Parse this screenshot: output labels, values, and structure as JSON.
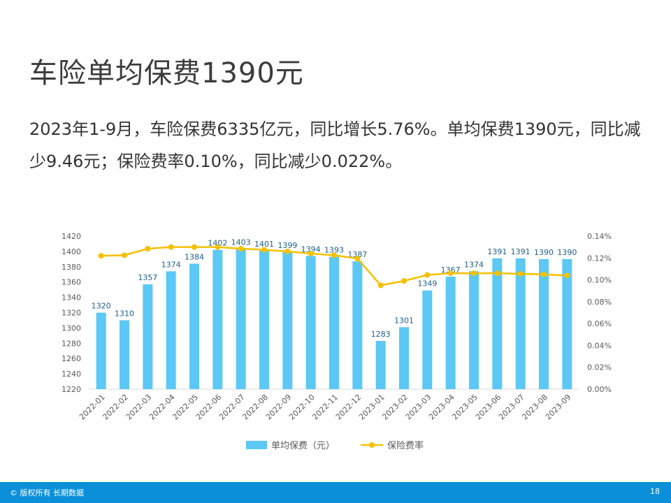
{
  "slide": {
    "title": "车险单均保费1390元",
    "description": "2023年1-9月，车险保费6335亿元，同比增长5.76%。单均保费1390元，同比减少9.46元；保险费率0.10%，同比减少0.022%。"
  },
  "footer": {
    "copyright": "© 版权所有 长期数据",
    "page_number": "18",
    "background_color": "#0a8fd8"
  },
  "chart_data": {
    "type": "bar",
    "categories": [
      "2022-01",
      "2022-02",
      "2022-03",
      "2022-04",
      "2022-05",
      "2022-06",
      "2022-07",
      "2022-08",
      "2022-09",
      "2022-10",
      "2022-11",
      "2022-12",
      "2023-01",
      "2023-02",
      "2023-03",
      "2023-04",
      "2023-05",
      "2023-06",
      "2023-07",
      "2023-08",
      "2023-09"
    ],
    "series": [
      {
        "name": "单均保费（元）",
        "type": "bar",
        "axis": "left",
        "color": "#5bc8f5",
        "values": [
          1320,
          1310,
          1357,
          1374,
          1384,
          1402,
          1403,
          1401,
          1399,
          1394,
          1393,
          1387,
          1283,
          1301,
          1349,
          1367,
          1374,
          1391,
          1391,
          1390,
          1390
        ]
      },
      {
        "name": "保险费率",
        "type": "line",
        "axis": "right",
        "color": "#f5c000",
        "values": [
          0.122,
          0.1225,
          0.1285,
          0.13,
          0.13,
          0.13,
          0.1285,
          0.1275,
          0.126,
          0.124,
          0.1225,
          0.1195,
          0.095,
          0.099,
          0.1045,
          0.106,
          0.106,
          0.106,
          0.1055,
          0.105,
          0.104
        ]
      }
    ],
    "y_left": {
      "min": 1220,
      "max": 1420,
      "ticks": [
        "1220",
        "1240",
        "1260",
        "1280",
        "1300",
        "1320",
        "1340",
        "1360",
        "1380",
        "1400",
        "1420"
      ]
    },
    "y_right": {
      "min": 0,
      "max": 0.14,
      "ticks": [
        "0.00%",
        "0.02%",
        "0.04%",
        "0.06%",
        "0.08%",
        "0.10%",
        "0.12%",
        "0.14%"
      ]
    },
    "bar_labels": true,
    "grid": false,
    "legend_position": "bottom"
  }
}
